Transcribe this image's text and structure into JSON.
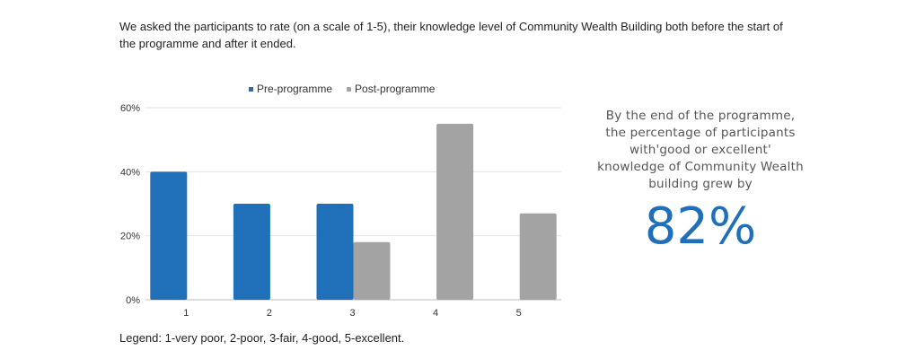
{
  "intro_text": "We asked the participants to rate (on a scale of 1-5), their  knowledge level of Community Wealth Building both before the start of the programme and after it ended.",
  "legend_note": "Legend: 1-very poor, 2-poor, 3-fair, 4-good, 5-excellent.",
  "callout": {
    "text": "By the end of the programme, the percentage of participants with'good or excellent' knowledge of Community Wealth building grew by",
    "stat": "82%"
  },
  "colors": {
    "pre": "#1f6fb9",
    "post": "#a3a3a3",
    "grid": "#e3e3e3",
    "axis": "#bdbdbd"
  },
  "chart_data": {
    "type": "bar",
    "categories": [
      "1",
      "2",
      "3",
      "4",
      "5"
    ],
    "series": [
      {
        "name": "Pre-programme",
        "values": [
          40,
          30,
          30,
          0,
          0
        ]
      },
      {
        "name": "Post-programme",
        "values": [
          0,
          0,
          18,
          55,
          27
        ]
      }
    ],
    "ylim": [
      0,
      60
    ],
    "yticks": [
      0,
      20,
      40,
      60
    ],
    "ytick_labels": [
      "0%",
      "20%",
      "40%",
      "60%"
    ],
    "grid": true,
    "legend_position": "top",
    "xlabel": "",
    "ylabel": ""
  }
}
